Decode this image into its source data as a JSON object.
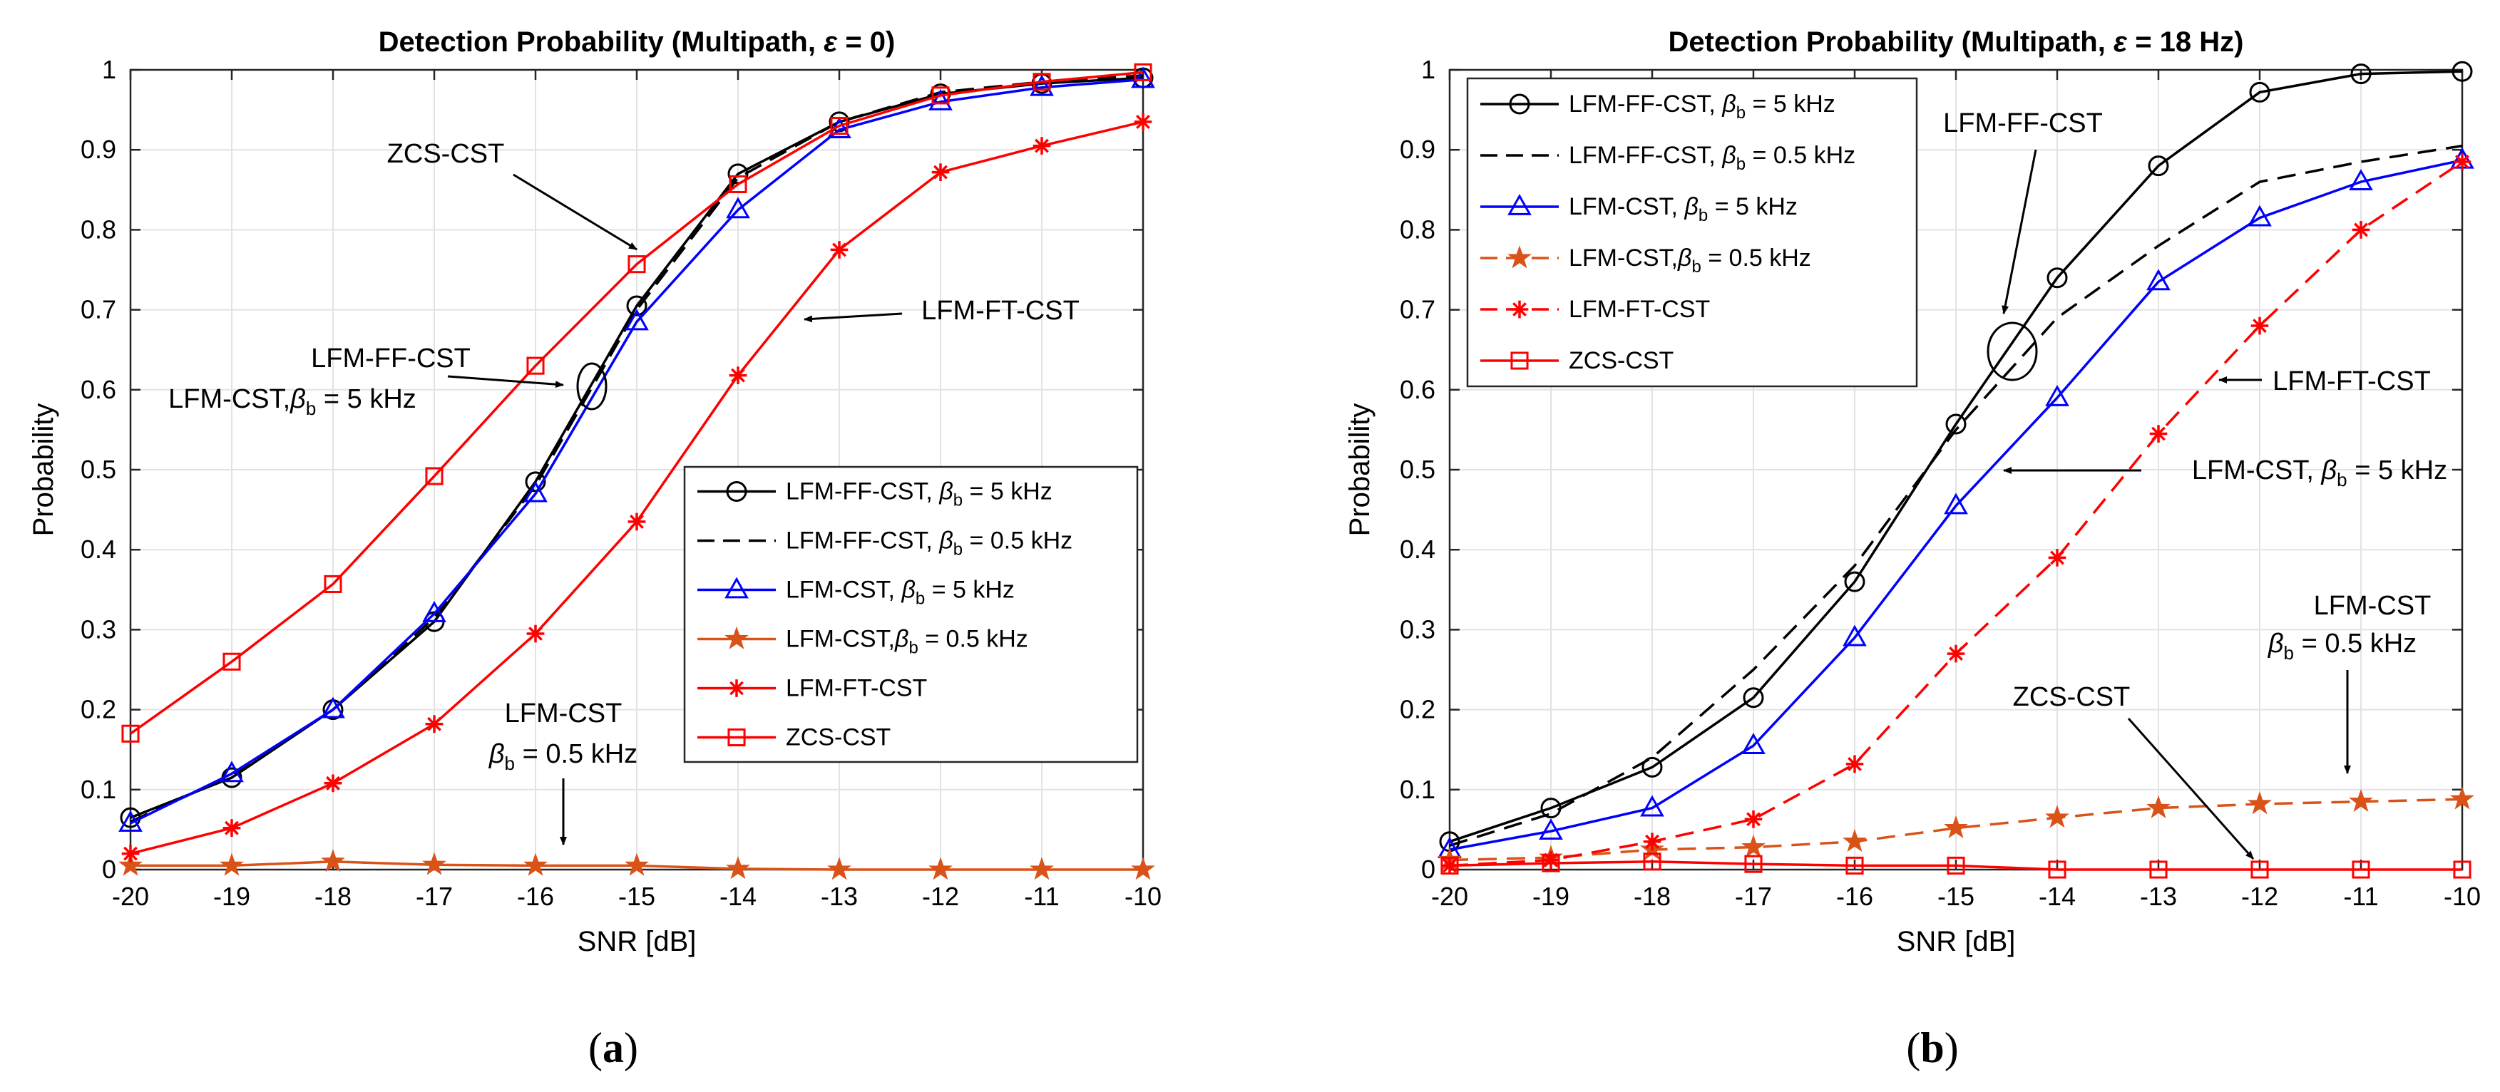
{
  "chart_data": [
    {
      "panel": "(a)",
      "type": "line",
      "title": "Detection Probability (Multipath, ε = 0)",
      "xlabel": "SNR [dB]",
      "ylabel": "Probability",
      "xlim": [
        -20,
        -10
      ],
      "ylim": [
        0,
        1
      ],
      "xticks": [
        "-20",
        "-19",
        "-18",
        "-17",
        "-16",
        "-15",
        "-14",
        "-13",
        "-12",
        "-11",
        "-10"
      ],
      "yticks": [
        "0",
        "0.1",
        "0.2",
        "0.3",
        "0.4",
        "0.5",
        "0.6",
        "0.7",
        "0.8",
        "0.9",
        "1"
      ],
      "grid": true,
      "legend_position": "lower-right",
      "x": [
        -20,
        -19,
        -18,
        -17,
        -16,
        -15,
        -14,
        -13,
        -12,
        -11,
        -10
      ],
      "series": [
        {
          "name": "LFM-FF-CST, β_b = 5 kHz",
          "legend_main": "LFM-FF-CST, ",
          "legend_sub": "b",
          "legend_tail": " = 5 kHz",
          "color": "#000000",
          "dash": "solid",
          "marker": "circle",
          "values": [
            0.065,
            0.115,
            0.2,
            0.31,
            0.485,
            0.705,
            0.87,
            0.935,
            0.97,
            0.983,
            0.99
          ]
        },
        {
          "name": "LFM-FF-CST, β_b = 0.5 kHz",
          "legend_main": "LFM-FF-CST, ",
          "legend_sub": "b",
          "legend_tail": " = 0.5 kHz",
          "color": "#000000",
          "dash": "dashed",
          "marker": "none",
          "values": [
            0.06,
            0.118,
            0.2,
            0.315,
            0.48,
            0.7,
            0.865,
            0.935,
            0.972,
            0.985,
            0.993
          ]
        },
        {
          "name": "LFM-CST, β_b = 5 kHz",
          "legend_main": "LFM-CST, ",
          "legend_sub": "b",
          "legend_tail": " = 5 kHz",
          "color": "#0000ff",
          "dash": "solid",
          "marker": "triangle",
          "values": [
            0.058,
            0.12,
            0.2,
            0.32,
            0.47,
            0.685,
            0.825,
            0.925,
            0.96,
            0.978,
            0.988
          ]
        },
        {
          "name": "LFM-CST,β_b = 0.5 kHz",
          "legend_main": "LFM-CST,",
          "legend_sub": "b",
          "legend_tail": " = 0.5 kHz",
          "color": "#d95319",
          "dash": "solid",
          "marker": "star",
          "values": [
            0.005,
            0.005,
            0.01,
            0.006,
            0.005,
            0.005,
            0.001,
            0.0,
            0.0,
            0.0,
            0.0
          ]
        },
        {
          "name": "LFM-FT-CST",
          "legend_main": "LFM-FT-CST",
          "legend_sub": "",
          "legend_tail": "",
          "color": "#ff0000",
          "dash": "solid",
          "marker": "asterisk",
          "values": [
            0.02,
            0.052,
            0.108,
            0.182,
            0.295,
            0.435,
            0.618,
            0.775,
            0.872,
            0.905,
            0.935
          ]
        },
        {
          "name": "ZCS-CST",
          "legend_main": "ZCS-CST",
          "legend_sub": "",
          "legend_tail": "",
          "color": "#ff0000",
          "dash": "solid",
          "marker": "square",
          "values": [
            0.17,
            0.26,
            0.357,
            0.492,
            0.63,
            0.757,
            0.857,
            0.93,
            0.968,
            0.985,
            0.997
          ]
        }
      ],
      "annotations": {
        "zcs": "ZCS-CST",
        "ff": "LFM-FF-CST",
        "cst_main": "LFM-CST,",
        "cst_tail": " = 5 kHz",
        "ft": "LFM-FT-CST",
        "lfmcst": "LFM-CST",
        "beta_tail": " = 0.5 kHz"
      }
    },
    {
      "panel": "(b)",
      "type": "line",
      "title": "Detection Probability (Multipath, ε = 18 Hz)",
      "xlabel": "SNR [dB]",
      "ylabel": "Probability",
      "xlim": [
        -20,
        -10
      ],
      "ylim": [
        0,
        1
      ],
      "xticks": [
        "-20",
        "-19",
        "-18",
        "-17",
        "-16",
        "-15",
        "-14",
        "-13",
        "-12",
        "-11",
        "-10"
      ],
      "yticks": [
        "0",
        "0.1",
        "0.2",
        "0.3",
        "0.4",
        "0.5",
        "0.6",
        "0.7",
        "0.8",
        "0.9",
        "1"
      ],
      "grid": true,
      "legend_position": "upper-left",
      "x": [
        -20,
        -19,
        -18,
        -17,
        -16,
        -15,
        -14,
        -13,
        -12,
        -11,
        -10
      ],
      "series": [
        {
          "name": "LFM-FF-CST, β_b = 5 kHz",
          "legend_main": "LFM-FF-CST, ",
          "legend_sub": "b",
          "legend_tail": " = 5 kHz",
          "color": "#000000",
          "dash": "solid",
          "marker": "circle",
          "values": [
            0.035,
            0.077,
            0.128,
            0.215,
            0.36,
            0.557,
            0.74,
            0.88,
            0.972,
            0.995,
            0.998
          ]
        },
        {
          "name": "LFM-FF-CST, β_b = 0.5 kHz",
          "legend_main": "LFM-FF-CST, ",
          "legend_sub": "b",
          "legend_tail": " = 0.5 kHz",
          "color": "#000000",
          "dash": "dashed",
          "marker": "none",
          "values": [
            0.03,
            0.07,
            0.14,
            0.25,
            0.38,
            0.55,
            0.69,
            0.78,
            0.86,
            0.885,
            0.905
          ]
        },
        {
          "name": "LFM-CST, β_b = 5 kHz",
          "legend_main": "LFM-CST, ",
          "legend_sub": "b",
          "legend_tail": " = 5 kHz",
          "color": "#0000ff",
          "dash": "solid",
          "marker": "triangle",
          "values": [
            0.025,
            0.048,
            0.077,
            0.155,
            0.29,
            0.455,
            0.59,
            0.735,
            0.815,
            0.86,
            0.887
          ]
        },
        {
          "name": "LFM-CST,β_b = 0.5 kHz",
          "legend_main": "LFM-CST,",
          "legend_sub": "b",
          "legend_tail": " = 0.5 kHz",
          "color": "#d95319",
          "dash": "dashed",
          "marker": "star",
          "values": [
            0.012,
            0.015,
            0.025,
            0.028,
            0.035,
            0.052,
            0.065,
            0.077,
            0.082,
            0.085,
            0.088
          ]
        },
        {
          "name": "LFM-FT-CST",
          "legend_main": "LFM-FT-CST",
          "legend_sub": "",
          "legend_tail": "",
          "color": "#ff0000",
          "dash": "dashed",
          "marker": "asterisk",
          "values": [
            0.005,
            0.012,
            0.035,
            0.063,
            0.132,
            0.27,
            0.39,
            0.545,
            0.68,
            0.8,
            0.885
          ]
        },
        {
          "name": "ZCS-CST",
          "legend_main": "ZCS-CST",
          "legend_sub": "",
          "legend_tail": "",
          "color": "#ff0000",
          "dash": "solid",
          "marker": "square",
          "values": [
            0.005,
            0.008,
            0.01,
            0.007,
            0.005,
            0.005,
            0.0,
            0.0,
            0.0,
            0.0,
            0.0
          ]
        }
      ],
      "annotations": {
        "ff": "LFM-FF-CST",
        "ft": "LFM-FT-CST",
        "cst_main": "LFM-CST, ",
        "cst_tail": " = 5 kHz",
        "lfmcst": "LFM-CST",
        "beta_tail": " = 0.5 kHz",
        "zcs": "ZCS-CST"
      }
    }
  ],
  "labels": {
    "a": "(a)",
    "b": "(b)",
    "beta": "β",
    "epsilon": "ε"
  }
}
